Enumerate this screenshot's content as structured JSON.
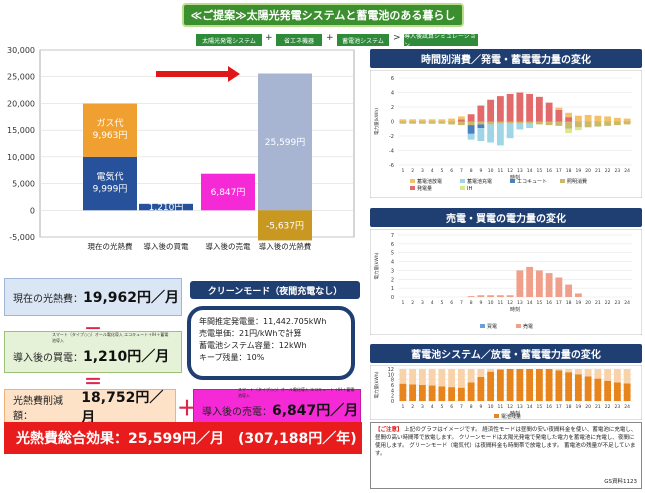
{
  "banner": "≪ご提案≫太陽光発電システムと蓄電池のある暮らし",
  "steps": [
    "太陽光発電システム",
    "省エネ機器",
    "蓄電池システム",
    "導入後試算シミュレーション"
  ],
  "step_separators": [
    "+",
    "+",
    ">"
  ],
  "main_chart": {
    "yticks": [
      "30,000",
      "25,000",
      "20,000",
      "15,000",
      "10,000",
      "5,000",
      "0",
      "-5,000"
    ],
    "categories": [
      "現在の光熱費",
      "導入後の買電",
      "導入後の売電",
      "導入後の光熱費"
    ],
    "segments": {
      "gas_label": "ガス代",
      "gas_value": "9,963円",
      "elec_label": "電気代",
      "elec_value": "9,999円",
      "buy_value": "1,210円",
      "sell_value": "6,847円",
      "after_value": "25,599円",
      "neg_value": "-5,637円"
    }
  },
  "chart_data": {
    "type": "bar",
    "categories": [
      "現在の光熱費",
      "導入後の買電",
      "導入後の売電",
      "導入後の光熱費"
    ],
    "series": [
      {
        "name": "電気代",
        "values": [
          9999,
          1210,
          0,
          0
        ]
      },
      {
        "name": "ガス代",
        "values": [
          9963,
          0,
          0,
          0
        ]
      },
      {
        "name": "",
        "values": [
          0,
          0,
          6847,
          25599
        ]
      },
      {
        "name": "",
        "values": [
          0,
          0,
          0,
          -5637
        ]
      }
    ],
    "ylim": [
      -5000,
      30000
    ]
  },
  "summary": {
    "current_label": "現在の光熱費：",
    "current_value": "19,962円／月",
    "minus": "－",
    "buy_small": "スマート（タイプ○○）オール電化導入 エコキュート＋IH＋蓄電池導入",
    "buy_label": "導入後の買電：",
    "buy_value": "1,210円／月",
    "equals": "＝",
    "reduction_label": "光熱費削減額：",
    "reduction_value": "18,752円／月",
    "plus": "＋",
    "sell_small": "スマート（タイプ○○）オール電化導入 エコキュート＋IH＋蓄電池導入",
    "sell_label": "導入後の売電：",
    "sell_value": "6,847円／月",
    "total": "光熱費総合効果：25,599円／月　(307,188円／年)"
  },
  "clean_mode": {
    "title": "クリーンモード（夜間充電なし）",
    "lines": [
      "年間推定発電量：11,442.705kWh",
      "売電単価：21円/kWhで計算",
      "蓄電池システム容量：12kWh",
      "キープ残量：10%"
    ]
  },
  "panels": {
    "p1_title": "時間別消費／発電・蓄電電力量の変化",
    "p1_yticks": [
      "6",
      "4",
      "2",
      "0",
      "-2",
      "-4",
      "-6"
    ],
    "p1_legend": [
      "蓄電池放電",
      "蓄電池充電",
      "エコキュート",
      "照明消費",
      "発電量",
      "IH"
    ],
    "p1_colors": [
      "#f5c06a",
      "#9ed6e8",
      "#4a7fc0",
      "#c9b96a",
      "#e26a6a",
      "#d8e88a"
    ],
    "p1_xlabel": "時刻",
    "p1_ylabel": "電力量(kWh)",
    "p2_title": "売電・買電の電力量の変化",
    "p2_yticks": [
      "7",
      "6",
      "5",
      "4",
      "3",
      "2",
      "1",
      "0"
    ],
    "p2_legend": [
      "買電",
      "売電"
    ],
    "p2_colors": [
      "#6a9fd8",
      "#f0a08a"
    ],
    "p2_xlabel": "時刻",
    "p2_ylabel": "電力量(kWh)",
    "p3_title": "蓄電池システム／放電・蓄電電力量の変化",
    "p3_yticks": [
      "12",
      "10",
      "8",
      "6",
      "4",
      "2",
      "0"
    ],
    "p3_legend": [
      "電池残量"
    ],
    "p3_colors": [
      "#e8841c"
    ],
    "p3_xlabel": "時刻",
    "p3_ylabel": "電力量(kWh)",
    "hours": [
      "1",
      "2",
      "3",
      "4",
      "5",
      "6",
      "7",
      "8",
      "9",
      "10",
      "11",
      "12",
      "13",
      "14",
      "15",
      "16",
      "17",
      "18",
      "19",
      "20",
      "21",
      "22",
      "23",
      "24"
    ]
  },
  "note": {
    "tag": "【ご注意】",
    "text": "上記のグラフはイメージです。 経済性モードは昼間の安い夜間料金を使い、蓄電池に充電し、昼間の高い時間帯で放電します。 クリーンモードは太陽光発電で発電した電力を蓄電池に充電し、夜間に使用します。 グリーンモード（電気代）は夜間料金も時間帯で放電します。 蓄電池の残量が不足しています。",
    "code": "GS資料1123"
  }
}
